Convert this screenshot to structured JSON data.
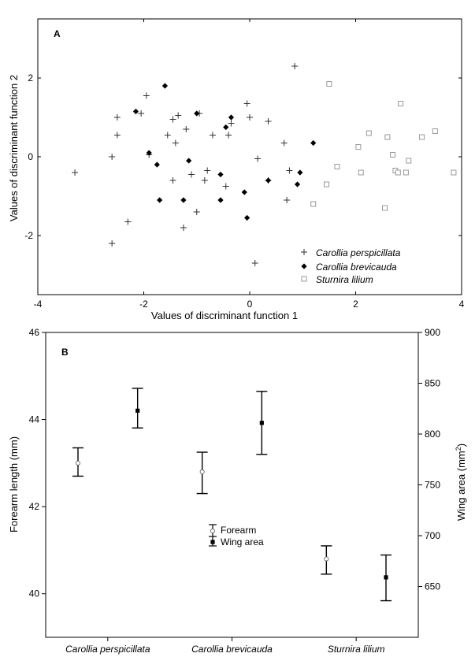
{
  "chart_data": [
    {
      "panel_label": "A",
      "type": "scatter",
      "xlabel": "Values of discriminant function 1",
      "ylabel": "Values of discriminant function 2",
      "xlim": [
        -4,
        4
      ],
      "ylim": [
        -3.5,
        3.5
      ],
      "xticks": [
        -4,
        -2,
        0,
        2,
        4
      ],
      "yticks": [
        -2,
        0,
        2
      ],
      "grid": false,
      "legend_position": "bottom-right",
      "series": [
        {
          "name": "Carollia perspicillata",
          "marker": "plus",
          "color": "#333333",
          "points": [
            [
              -3.3,
              -0.4
            ],
            [
              -2.6,
              -2.2
            ],
            [
              -2.6,
              0.0
            ],
            [
              -2.5,
              0.55
            ],
            [
              -2.5,
              1.0
            ],
            [
              -2.3,
              -1.65
            ],
            [
              -2.05,
              1.1
            ],
            [
              -1.95,
              1.55
            ],
            [
              -1.9,
              0.05
            ],
            [
              -1.55,
              0.55
            ],
            [
              -1.45,
              0.95
            ],
            [
              -1.45,
              -0.6
            ],
            [
              -1.4,
              0.35
            ],
            [
              -1.35,
              1.05
            ],
            [
              -1.25,
              -1.8
            ],
            [
              -1.2,
              0.7
            ],
            [
              -1.1,
              -0.45
            ],
            [
              -1.0,
              -1.4
            ],
            [
              -0.95,
              1.1
            ],
            [
              -0.85,
              -0.6
            ],
            [
              -0.8,
              -0.35
            ],
            [
              -0.7,
              0.55
            ],
            [
              -0.45,
              -0.75
            ],
            [
              -0.4,
              0.55
            ],
            [
              -0.35,
              0.85
            ],
            [
              -0.05,
              1.35
            ],
            [
              0.0,
              1.0
            ],
            [
              0.1,
              -2.7
            ],
            [
              0.15,
              -0.05
            ],
            [
              0.35,
              -0.6
            ],
            [
              0.35,
              0.9
            ],
            [
              0.65,
              0.35
            ],
            [
              0.7,
              -1.1
            ],
            [
              0.75,
              -0.35
            ],
            [
              0.85,
              2.3
            ]
          ]
        },
        {
          "name": "Carollia brevicauda",
          "marker": "diamond",
          "color": "#000000",
          "points": [
            [
              -2.15,
              1.15
            ],
            [
              -1.9,
              0.1
            ],
            [
              -1.75,
              -0.2
            ],
            [
              -1.7,
              -1.1
            ],
            [
              -1.6,
              1.8
            ],
            [
              -1.25,
              -1.1
            ],
            [
              -1.15,
              -0.1
            ],
            [
              -1.0,
              1.1
            ],
            [
              -0.55,
              -1.1
            ],
            [
              -0.55,
              -0.45
            ],
            [
              -0.45,
              0.75
            ],
            [
              -0.35,
              1.0
            ],
            [
              -0.1,
              -0.9
            ],
            [
              -0.05,
              -1.55
            ],
            [
              0.35,
              -0.6
            ],
            [
              0.9,
              -0.7
            ],
            [
              0.95,
              -0.4
            ],
            [
              1.2,
              0.35
            ]
          ]
        },
        {
          "name": "Sturnira lilium",
          "marker": "square-open",
          "color": "#999999",
          "points": [
            [
              1.2,
              -1.2
            ],
            [
              1.45,
              -0.7
            ],
            [
              1.5,
              1.85
            ],
            [
              1.65,
              -0.25
            ],
            [
              2.05,
              0.25
            ],
            [
              2.1,
              -0.4
            ],
            [
              2.25,
              0.6
            ],
            [
              2.55,
              -1.3
            ],
            [
              2.6,
              0.5
            ],
            [
              2.7,
              0.05
            ],
            [
              2.75,
              -0.35
            ],
            [
              2.8,
              -0.4
            ],
            [
              2.85,
              1.35
            ],
            [
              2.95,
              -0.4
            ],
            [
              3.0,
              -0.1
            ],
            [
              3.25,
              0.5
            ],
            [
              3.5,
              0.65
            ],
            [
              3.85,
              -0.4
            ]
          ]
        }
      ]
    },
    {
      "panel_label": "B",
      "type": "errorbar",
      "categories": [
        "Carollia perspicillata",
        "Carollia brevicauda",
        "Sturnira lilium"
      ],
      "ylabel_left": "Forearm length (mm)",
      "ylabel_right": "Wing area (mm",
      "ylabel_right_sup": "2",
      "ylabel_right_close": ")",
      "ylim_left": [
        39,
        46
      ],
      "ylim_right": [
        600,
        900
      ],
      "yticks_left": [
        40,
        42,
        44,
        46
      ],
      "yticks_right": [
        650,
        700,
        750,
        800,
        850,
        900
      ],
      "legend_position": "center",
      "series": [
        {
          "name": "Forearm",
          "axis": "left",
          "marker": "circle-open",
          "means": [
            43.0,
            42.8,
            40.8
          ],
          "lower": [
            42.7,
            42.3,
            40.45
          ],
          "upper": [
            43.35,
            43.25,
            41.1
          ]
        },
        {
          "name": "Wing area",
          "axis": "right",
          "marker": "square-filled",
          "means": [
            823,
            811,
            659
          ],
          "lower": [
            806,
            780,
            636
          ],
          "upper": [
            845,
            842,
            681
          ]
        }
      ]
    }
  ]
}
